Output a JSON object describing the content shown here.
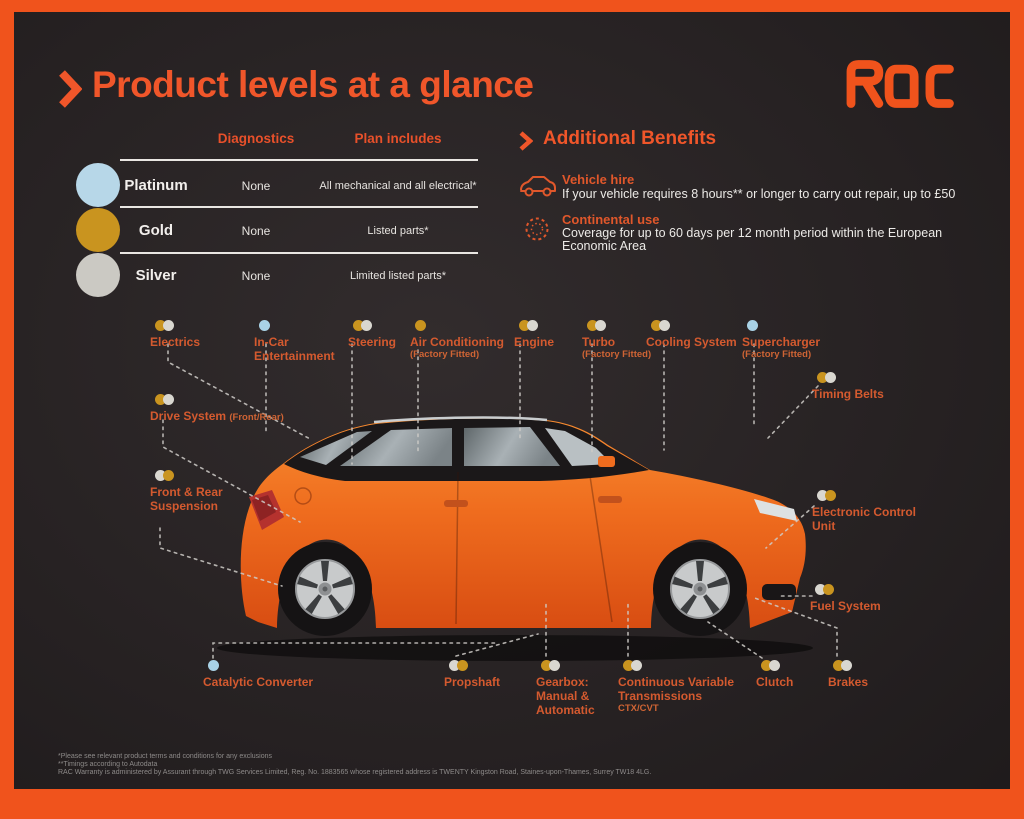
{
  "header": {
    "title": "Product levels at a glance",
    "brand": "RAC"
  },
  "table": {
    "columns": [
      "Diagnostics",
      "Plan includes"
    ],
    "rows": [
      {
        "tier": "Platinum",
        "color": "#b7d7e8",
        "diagnostics": "None",
        "includes": "All mechanical and all electrical*"
      },
      {
        "tier": "Gold",
        "color": "#c9941f",
        "diagnostics": "None",
        "includes": "Listed parts*"
      },
      {
        "tier": "Silver",
        "color": "#cbc9c3",
        "diagnostics": "None",
        "includes": "Limited listed parts*"
      }
    ]
  },
  "benefits": {
    "title": "Additional Benefits",
    "items": [
      {
        "title": "Vehicle hire",
        "description": "If your vehicle requires 8 hours** or longer to carry out repair, up to £50"
      },
      {
        "title": "Continental use",
        "description": "Coverage for up to 60 days per 12 month period within the European Economic Area"
      }
    ]
  },
  "diagram": {
    "parts": [
      {
        "label": "Electrics",
        "dots": [
          "gold",
          "silver"
        ]
      },
      {
        "label": "In-Car Entertainment",
        "dots": [
          "platinum"
        ]
      },
      {
        "label": "Steering",
        "dots": [
          "gold",
          "silver"
        ]
      },
      {
        "label": "Air Conditioning",
        "note": "(Factory Fitted)",
        "dots": [
          "gold"
        ]
      },
      {
        "label": "Engine",
        "dots": [
          "gold",
          "silver"
        ]
      },
      {
        "label": "Turbo",
        "note": "(Factory Fitted)",
        "dots": [
          "gold",
          "silver"
        ]
      },
      {
        "label": "Cooling System",
        "dots": [
          "gold",
          "silver"
        ]
      },
      {
        "label": "Supercharger",
        "note": "(Factory Fitted)",
        "dots": [
          "platinum"
        ]
      },
      {
        "label": "Timing Belts",
        "dots": [
          "gold",
          "silver"
        ]
      },
      {
        "label": "Drive System",
        "note": "(Front/Rear)",
        "dots": [
          "gold",
          "silver"
        ]
      },
      {
        "label": "Front & Rear Suspension",
        "dots": [
          "silver",
          "gold"
        ]
      },
      {
        "label": "Electronic Control Unit",
        "dots": [
          "silver",
          "gold"
        ]
      },
      {
        "label": "Fuel System",
        "dots": [
          "silver",
          "gold"
        ]
      },
      {
        "label": "Catalytic Converter",
        "dots": [
          "platinum"
        ]
      },
      {
        "label": "Propshaft",
        "dots": [
          "silver",
          "gold"
        ]
      },
      {
        "label": "Gearbox: Manual & Automatic",
        "dots": [
          "gold",
          "silver"
        ]
      },
      {
        "label": "Continuous Variable Transmissions",
        "note": "CTX/CVT",
        "dots": [
          "gold",
          "silver"
        ]
      },
      {
        "label": "Clutch",
        "dots": [
          "gold",
          "silver"
        ]
      },
      {
        "label": "Brakes",
        "dots": [
          "gold",
          "silver"
        ]
      }
    ]
  },
  "colors": {
    "accent": "#f0531c",
    "gold": "#c9941f",
    "silver": "#d9d7d0",
    "platinum": "#a9d2e6",
    "label_orange": "#d45a2f"
  },
  "footnotes": [
    "*Please see relevant product terms and conditions for any exclusions",
    "**Timings according to Autodata",
    "RAC Warranty is administered by Assurant through TWG Services Limited, Reg. No. 1883565 whose registered address is TWENTY Kingston Road, Staines-upon-Thames, Surrey TW18 4LG."
  ]
}
